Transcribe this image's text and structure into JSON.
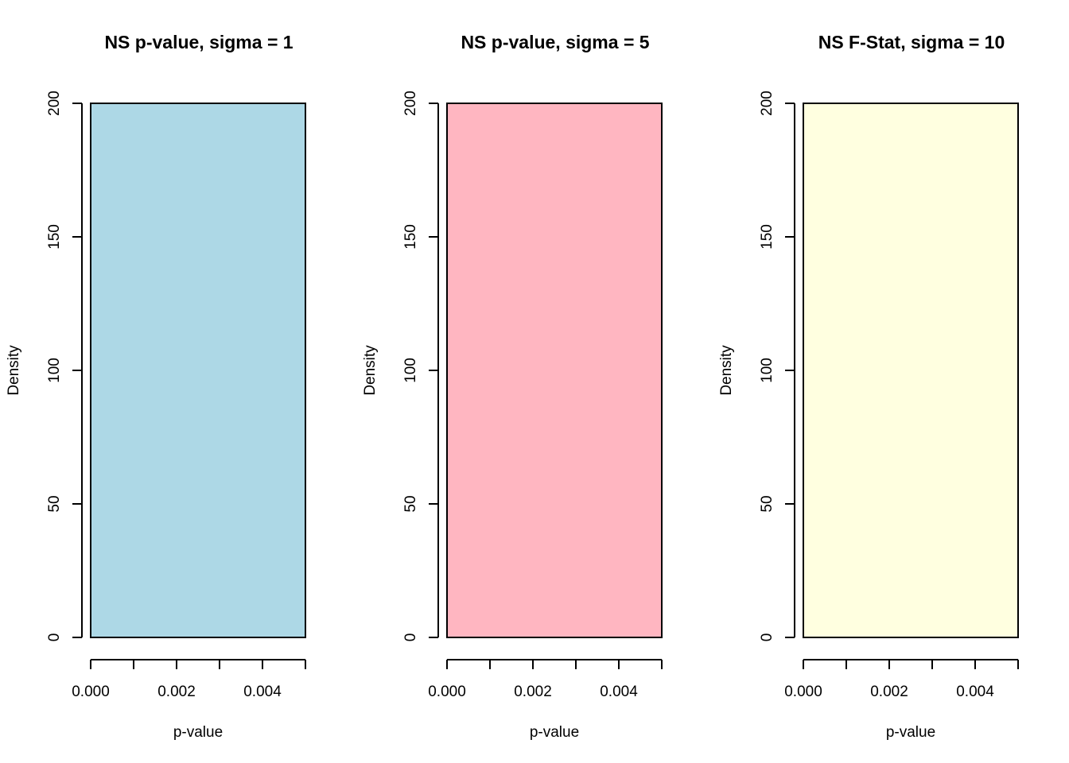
{
  "chart_data": [
    {
      "type": "bar",
      "title": "NS p-value, sigma = 1",
      "xlabel": "p-value",
      "ylabel": "Density",
      "xlim": [
        0,
        0.005
      ],
      "ylim": [
        0,
        200
      ],
      "x_ticks": [
        0,
        0.001,
        0.002,
        0.003,
        0.004,
        0.005
      ],
      "x_tick_labels": [
        "0.000",
        "",
        "0.002",
        "",
        "0.004",
        ""
      ],
      "y_ticks": [
        0,
        50,
        100,
        150,
        200
      ],
      "y_tick_labels": [
        "0",
        "50",
        "100",
        "150",
        "200"
      ],
      "bins": [
        {
          "x0": 0,
          "x1": 0.005,
          "density": 200
        }
      ],
      "fill": "#ADD8E6",
      "grid": false
    },
    {
      "type": "bar",
      "title": "NS p-value, sigma = 5",
      "xlabel": "p-value",
      "ylabel": "Density",
      "xlim": [
        0,
        0.005
      ],
      "ylim": [
        0,
        200
      ],
      "x_ticks": [
        0,
        0.001,
        0.002,
        0.003,
        0.004,
        0.005
      ],
      "x_tick_labels": [
        "0.000",
        "",
        "0.002",
        "",
        "0.004",
        ""
      ],
      "y_ticks": [
        0,
        50,
        100,
        150,
        200
      ],
      "y_tick_labels": [
        "0",
        "50",
        "100",
        "150",
        "200"
      ],
      "bins": [
        {
          "x0": 0,
          "x1": 0.005,
          "density": 200
        }
      ],
      "fill": "#FFB6C1",
      "grid": false
    },
    {
      "type": "bar",
      "title": "NS F-Stat, sigma = 10",
      "xlabel": "p-value",
      "ylabel": "Density",
      "xlim": [
        0,
        0.005
      ],
      "ylim": [
        0,
        200
      ],
      "x_ticks": [
        0,
        0.001,
        0.002,
        0.003,
        0.004,
        0.005
      ],
      "x_tick_labels": [
        "0.000",
        "",
        "0.002",
        "",
        "0.004",
        ""
      ],
      "y_ticks": [
        0,
        50,
        100,
        150,
        200
      ],
      "y_tick_labels": [
        "0",
        "50",
        "100",
        "150",
        "200"
      ],
      "bins": [
        {
          "x0": 0,
          "x1": 0.005,
          "density": 200
        }
      ],
      "fill": "#FFFFE0",
      "grid": false
    }
  ]
}
